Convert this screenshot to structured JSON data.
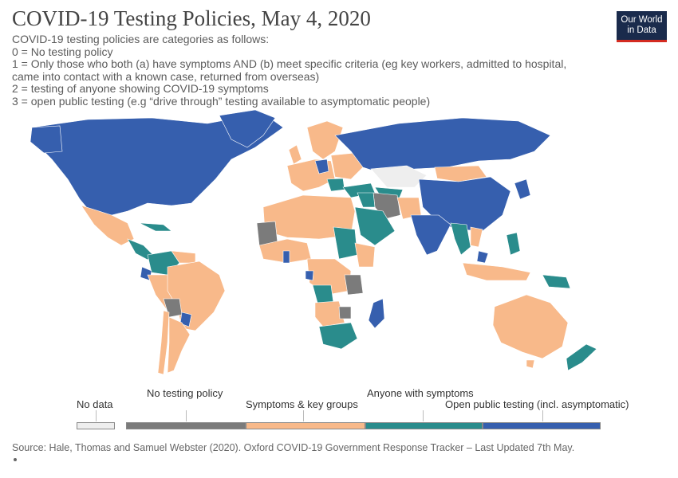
{
  "header": {
    "title": "COVID-19 Testing Policies, May 4, 2020",
    "subtitle_lines": [
      "COVID-19 testing policies are categories as follows:",
      "0 = No testing policy",
      "1 = Only those who both (a) have symptoms AND (b) meet specific criteria (eg key workers, admitted to hospital,",
      "came into contact with a known case, returned from overseas)",
      "2 = testing of anyone showing COVID-19 symptoms",
      "3 = open public testing (e.g “drive through” testing available to asymptomatic people)"
    ]
  },
  "logo": {
    "line1": "Our World",
    "line2": "in Data"
  },
  "legend": {
    "no_data": {
      "label": "No data",
      "color": "#eeeeee"
    },
    "categories": [
      {
        "label": "No testing policy",
        "color": "#7b7b7b"
      },
      {
        "label": "Symptoms & key groups",
        "color": "#f8b98a"
      },
      {
        "label": "Anyone with symptoms",
        "color": "#2a8c8c"
      },
      {
        "label": "Open public testing (incl. asymptomatic)",
        "color": "#365fae"
      }
    ]
  },
  "map_colors": {
    "no_data": "#eeeeee",
    "none": "#7b7b7b",
    "symptoms_key_groups": "#f8b98a",
    "anyone_symptoms": "#2a8c8c",
    "open_public": "#365fae",
    "border": "#ffffff"
  },
  "footer": {
    "source": "Source: Hale, Thomas and Samuel Webster (2020). Oxford COVID-19 Government Response Tracker – Last Updated 7th May."
  }
}
